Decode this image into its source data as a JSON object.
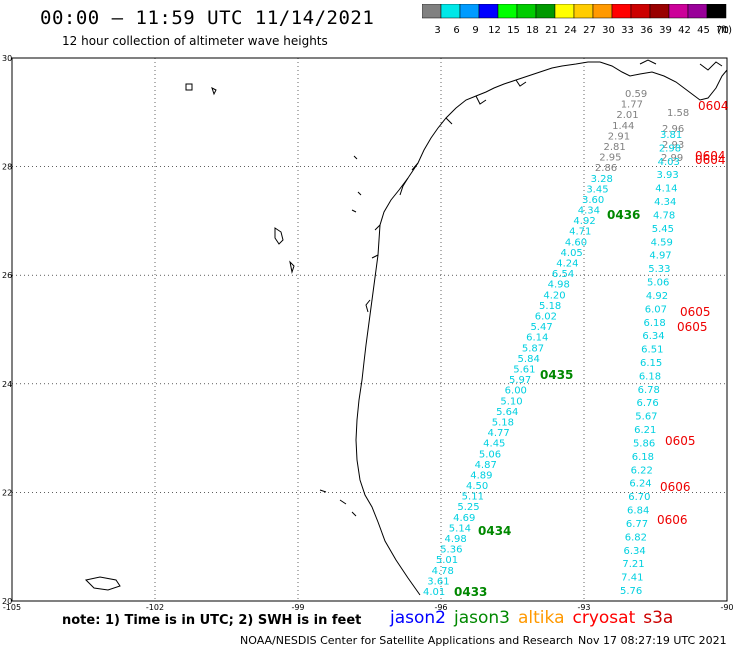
{
  "header": {
    "title": "00:00 – 11:59 UTC 11/14/2021",
    "subtitle": "12 hour collection of altimeter wave heights"
  },
  "legend": {
    "unit": "(ft)",
    "bins": [
      {
        "label": "3",
        "color": "#808080"
      },
      {
        "label": "6",
        "color": "#00e8e8"
      },
      {
        "label": "9",
        "color": "#009bff"
      },
      {
        "label": "12",
        "color": "#0000ff"
      },
      {
        "label": "15",
        "color": "#00ff00"
      },
      {
        "label": "18",
        "color": "#00cc00"
      },
      {
        "label": "21",
        "color": "#009900"
      },
      {
        "label": "24",
        "color": "#ffff00"
      },
      {
        "label": "27",
        "color": "#ffcc00"
      },
      {
        "label": "30",
        "color": "#ff9900"
      },
      {
        "label": "33",
        "color": "#ff0000"
      },
      {
        "label": "36",
        "color": "#cc0000"
      },
      {
        "label": "39",
        "color": "#990000"
      },
      {
        "label": "42",
        "color": "#cc0099"
      },
      {
        "label": "45",
        "color": "#990099"
      },
      {
        "label": "70",
        "color": "#000000"
      }
    ]
  },
  "axes": {
    "lat_labels": [
      "30",
      "28",
      "26",
      "24",
      "22",
      "20"
    ],
    "lon_labels": [
      "-105",
      "-102",
      "-99",
      "-96",
      "-93",
      "-90"
    ]
  },
  "colors": {
    "gray": "#808080",
    "cyan": "#00d0e0",
    "green": "#008800",
    "red": "#ee0000",
    "coast": "#000000",
    "jason2": "#0000ff",
    "jason3": "#008800",
    "altika": "#ff9900",
    "cryosat": "#ff0000",
    "s3a": "#cc0000"
  },
  "track_west": {
    "gray_values": [
      "0.59",
      "1.77",
      "2.01",
      "1.44",
      "2.91",
      "2.81",
      "2.95",
      "2.86"
    ],
    "cyan_values": [
      "3.28",
      "3.45",
      "3.60",
      "4.34",
      "4.92",
      "4.71",
      "4.60",
      "4.05",
      "4.24",
      "6.54",
      "4.98",
      "4.20",
      "5.18",
      "6.02",
      "5.47",
      "6.14",
      "5.87",
      "5.84",
      "5.61",
      "5.97",
      "6.00",
      "5.10",
      "5.64",
      "5.18",
      "4.77",
      "4.45",
      "5.06",
      "4.87",
      "4.89",
      "4.50",
      "5.11",
      "5.25",
      "4.69",
      "5.14",
      "4.98",
      "5.36",
      "5.01",
      "4.78",
      "3.61",
      "4.01"
    ],
    "time_labels": [
      "0436",
      "0435",
      "0434",
      "0433"
    ]
  },
  "track_east": {
    "gray_values": [
      "1.58",
      "2.96",
      "2.93",
      "2.99"
    ],
    "cyan_values": [
      "3.81",
      "2.98",
      "4.03",
      "3.93",
      "4.14",
      "4.34",
      "4.78",
      "5.45",
      "4.59",
      "4.97",
      "5.33",
      "5.06",
      "4.92",
      "6.07",
      "6.18",
      "6.34",
      "6.51",
      "6.15",
      "6.18",
      "6.78",
      "6.76",
      "5.67",
      "6.21",
      "5.86",
      "6.18",
      "6.22",
      "6.24",
      "6.70",
      "6.84",
      "6.77",
      "6.82",
      "6.34",
      "7.21",
      "7.41",
      "5.76"
    ],
    "time_labels": [
      "0604",
      "0604",
      "0604",
      "0605",
      "0605",
      "0605",
      "0606",
      "0606"
    ]
  },
  "footer": {
    "note": "note: 1) Time is in UTC; 2) SWH is in feet",
    "satellites": [
      "jason2",
      "jason3",
      "altika",
      "cryosat",
      "s3a"
    ],
    "credit": "NOAA/NESDIS Center for Satellite Applications and Research",
    "timestamp": "Nov 17 08:27:19 UTC 2021"
  }
}
